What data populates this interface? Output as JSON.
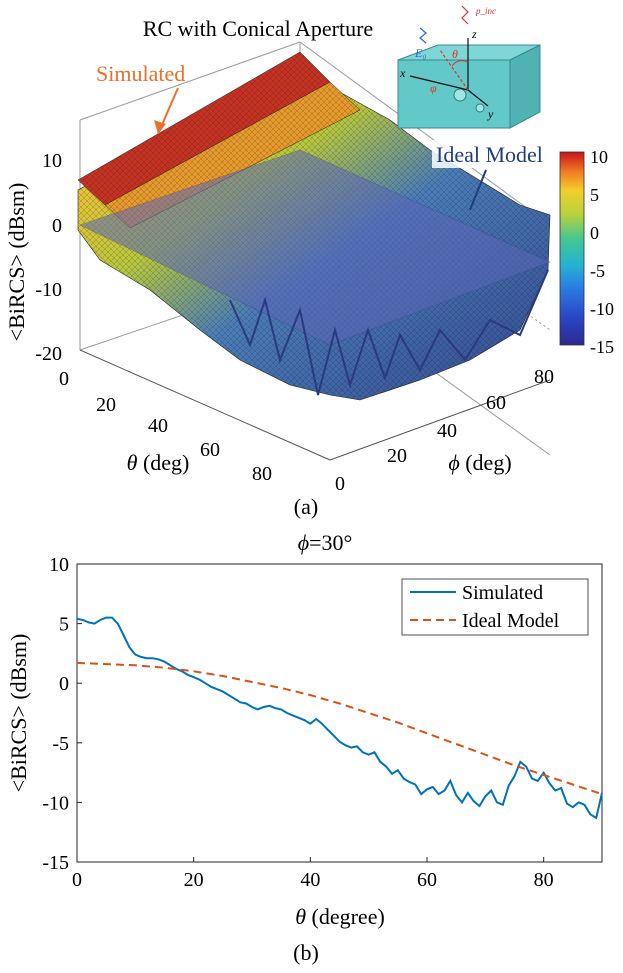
{
  "chart_data": [
    {
      "type": "surface",
      "title": "RC with Conical Aperture",
      "panel_label": "(a)",
      "xlabel_symbol": "θ",
      "xlabel_unit": " (deg)",
      "ylabel_symbol": "ϕ",
      "ylabel_unit": " (deg)",
      "zlabel": "<BiRCS> (dBsm)",
      "theta_ticks": [
        "0",
        "20",
        "40",
        "60",
        "80"
      ],
      "phi_ticks": [
        "0",
        "20",
        "40",
        "60",
        "80"
      ],
      "z_ticks": [
        "10",
        "0",
        "-10",
        "-20"
      ],
      "zlim": [
        -20,
        10
      ],
      "colorbar_ticks": [
        "10",
        "5",
        "0",
        "-5",
        "-10",
        "-15"
      ],
      "colorbar_range": [
        -15,
        10
      ],
      "annotations": [
        "Simulated",
        "Ideal Model"
      ],
      "inset_labels": [
        "z",
        "x",
        "y",
        "θ",
        "φ",
        "E₀",
        "p_inc"
      ],
      "colors": {
        "simulated_annotation": "#e8702a",
        "ideal_annotation": "#1f3f7a"
      }
    },
    {
      "type": "line",
      "title_symbol": "ϕ",
      "title_rest": "=30°",
      "panel_label": "(b)",
      "xlabel_symbol": "θ",
      "xlabel_unit": " (degree)",
      "ylabel": "<BiRCS> (dBsm)",
      "xlim": [
        0,
        90
      ],
      "ylim": [
        -15,
        10
      ],
      "x_ticks": [
        "0",
        "20",
        "40",
        "60",
        "80"
      ],
      "y_ticks": [
        "10",
        "5",
        "0",
        "-5",
        "-10",
        "-15"
      ],
      "series": [
        {
          "name": "Simulated",
          "color": "#0072BD",
          "dash": "solid",
          "x": [
            0,
            1,
            2,
            3,
            4,
            5,
            6,
            7,
            8,
            9,
            10,
            11,
            12,
            13,
            14,
            15,
            16,
            17,
            18,
            19,
            20,
            21,
            22,
            23,
            24,
            25,
            26,
            27,
            28,
            29,
            30,
            31,
            32,
            33,
            34,
            35,
            36,
            37,
            38,
            39,
            40,
            41,
            42,
            43,
            44,
            45,
            46,
            47,
            48,
            49,
            50,
            51,
            52,
            53,
            54,
            55,
            56,
            57,
            58,
            59,
            60,
            61,
            62,
            63,
            64,
            65,
            66,
            67,
            68,
            69,
            70,
            71,
            72,
            73,
            74,
            75,
            76,
            77,
            78,
            79,
            80,
            81,
            82,
            83,
            84,
            85,
            86,
            87,
            88,
            89,
            90
          ],
          "y": [
            5.4,
            5.3,
            5.1,
            5.0,
            5.3,
            5.5,
            5.5,
            5.0,
            4.0,
            3.0,
            2.4,
            2.2,
            2.1,
            2.1,
            2.0,
            1.8,
            1.5,
            1.2,
            1.0,
            0.7,
            0.5,
            0.3,
            0.0,
            -0.3,
            -0.5,
            -0.7,
            -1.0,
            -1.3,
            -1.6,
            -1.7,
            -2.0,
            -2.2,
            -2.0,
            -1.9,
            -2.1,
            -2.2,
            -2.5,
            -2.7,
            -2.9,
            -3.1,
            -3.4,
            -3.0,
            -3.4,
            -3.9,
            -4.4,
            -4.9,
            -5.2,
            -5.4,
            -5.3,
            -5.8,
            -6.0,
            -5.8,
            -6.6,
            -7.0,
            -7.6,
            -7.3,
            -8.0,
            -8.3,
            -8.5,
            -9.3,
            -8.9,
            -8.7,
            -9.3,
            -9.0,
            -8.2,
            -9.4,
            -10.0,
            -9.2,
            -9.9,
            -10.3,
            -9.5,
            -9.0,
            -10.0,
            -10.2,
            -8.6,
            -7.8,
            -6.6,
            -7.0,
            -8.0,
            -8.2,
            -7.5,
            -8.4,
            -9.0,
            -8.8,
            -10.1,
            -10.4,
            -10.0,
            -10.2,
            -11.0,
            -11.3,
            -9.2
          ]
        },
        {
          "name": "Ideal Model",
          "color": "#D95319",
          "dash": "dashed",
          "x": [
            0,
            5,
            10,
            15,
            20,
            25,
            30,
            35,
            40,
            45,
            50,
            55,
            60,
            65,
            70,
            75,
            80,
            85,
            90
          ],
          "y": [
            1.7,
            1.6,
            1.5,
            1.3,
            1.0,
            0.6,
            0.1,
            -0.4,
            -1.0,
            -1.7,
            -2.5,
            -3.3,
            -4.2,
            -5.1,
            -6.0,
            -6.9,
            -7.7,
            -8.5,
            -9.3
          ]
        }
      ]
    }
  ]
}
